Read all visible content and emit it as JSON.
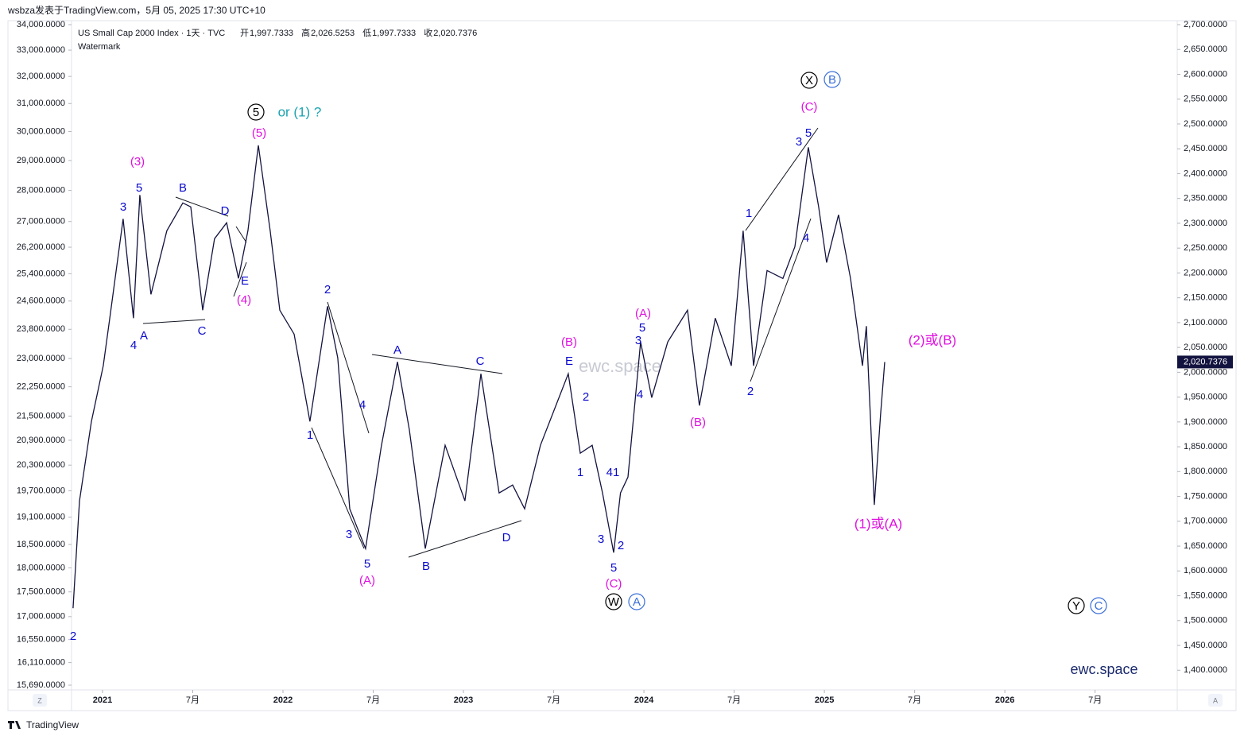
{
  "header": {
    "source": "wsbza发表于TradingView.com，5月 05, 2025 17:30 UTC+10",
    "symbol": "US Small Cap 2000 Index · 1天 · TVC",
    "ohlc": [
      {
        "label": "开",
        "value": "1,997.7333"
      },
      {
        "label": "高",
        "value": "2,026.5253"
      },
      {
        "label": "低",
        "value": "1,997.7333"
      },
      {
        "label": "收",
        "value": "2,020.7376"
      }
    ],
    "watermark": "Watermark"
  },
  "chart_data": {
    "type": "line",
    "series": [
      {
        "color": "#131340",
        "x": [
          -1.96,
          -1.53,
          -0.74,
          0.05,
          0.48,
          1.37,
          2.06,
          2.48,
          3.22,
          4.28,
          5.34,
          5.87,
          6.66,
          7.45,
          8.25,
          9.04,
          9.67,
          10.36,
          11.15,
          11.79,
          12.74,
          13.79,
          14.96,
          15.64,
          16.44,
          17.49,
          18.55,
          19.61,
          20.4,
          21.46,
          22.78,
          24.1,
          25.16,
          26.37,
          27.27,
          28.07,
          29.12,
          30.97,
          31.77,
          32.56,
          33.25,
          33.99,
          34.44,
          34.94,
          35.78,
          36.52,
          37.58,
          38.9,
          39.69,
          40.75,
          41.81,
          42.6,
          43.29,
          44.19,
          45.24,
          46.04,
          46.93,
          47.62,
          48.15,
          48.94,
          49.74,
          50.53,
          50.79,
          51.32,
          51.74,
          52.01
        ],
        "values": [
          1525,
          1741,
          1901,
          2013,
          2109,
          2309,
          2109,
          2357,
          2157,
          2285,
          2341,
          2333,
          2125,
          2269,
          2301,
          2189,
          2285,
          2457,
          2285,
          2125,
          2077,
          1901,
          2133,
          2029,
          1725,
          1645,
          1853,
          2021,
          1885,
          1645,
          1853,
          1741,
          1997,
          1757,
          1773,
          1725,
          1853,
          1997,
          1837,
          1853,
          1757,
          1637,
          1757,
          1789,
          2061,
          1949,
          2061,
          2125,
          1933,
          2109,
          2013,
          2285,
          2013,
          2205,
          2189,
          2253,
          2453,
          2333,
          2221,
          2317,
          2189,
          2013,
          2093,
          1733,
          1917,
          2020.7376
        ]
      }
    ],
    "last_value": {
      "value": 2020.7376,
      "label": "2,020.7376"
    },
    "xlim": [
      -2.06,
      71.41
    ],
    "xticks": [
      {
        "value": 0,
        "label": "2021"
      },
      {
        "value": 6,
        "label": "7月"
      },
      {
        "value": 12,
        "label": "2022"
      },
      {
        "value": 18,
        "label": "7月"
      },
      {
        "value": 24,
        "label": "2023"
      },
      {
        "value": 30,
        "label": "7月"
      },
      {
        "value": 36,
        "label": "2024"
      },
      {
        "value": 42,
        "label": "7月"
      },
      {
        "value": 48,
        "label": "2025"
      },
      {
        "value": 54,
        "label": "7月"
      },
      {
        "value": 60,
        "label": "2026"
      },
      {
        "value": 66,
        "label": "7月"
      }
    ],
    "ylim": [
      1370,
      2700
    ],
    "yticks": [
      {
        "value": 2700,
        "label": "2,700.0000"
      },
      {
        "value": 2650,
        "label": "2,650.0000"
      },
      {
        "value": 2600,
        "label": "2,600.0000"
      },
      {
        "value": 2550,
        "label": "2,550.0000"
      },
      {
        "value": 2500,
        "label": "2,500.0000"
      },
      {
        "value": 2450,
        "label": "2,450.0000"
      },
      {
        "value": 2400,
        "label": "2,400.0000"
      },
      {
        "value": 2350,
        "label": "2,350.0000"
      },
      {
        "value": 2300,
        "label": "2,300.0000"
      },
      {
        "value": 2250,
        "label": "2,250.0000"
      },
      {
        "value": 2200,
        "label": "2,200.0000"
      },
      {
        "value": 2150,
        "label": "2,150.0000"
      },
      {
        "value": 2100,
        "label": "2,100.0000"
      },
      {
        "value": 2050,
        "label": "2,050.0000"
      },
      {
        "value": 2000,
        "label": "2,000.0000"
      },
      {
        "value": 1950,
        "label": "1,950.0000"
      },
      {
        "value": 1900,
        "label": "1,900.0000"
      },
      {
        "value": 1850,
        "label": "1,850.0000"
      },
      {
        "value": 1800,
        "label": "1,800.0000"
      },
      {
        "value": 1750,
        "label": "1,750.0000"
      },
      {
        "value": 1700,
        "label": "1,700.0000"
      },
      {
        "value": 1650,
        "label": "1,650.0000"
      },
      {
        "value": 1600,
        "label": "1,600.0000"
      },
      {
        "value": 1550,
        "label": "1,550.0000"
      },
      {
        "value": 1500,
        "label": "1,500.0000"
      },
      {
        "value": 1450,
        "label": "1,450.0000"
      },
      {
        "value": 1400,
        "label": "1,400.0000"
      }
    ],
    "y2lim": [
      15690,
      34000
    ],
    "y2log": true,
    "y2ticks": [
      {
        "value": 34000,
        "label": "34,000.0000"
      },
      {
        "value": 33000,
        "label": "33,000.0000"
      },
      {
        "value": 32000,
        "label": "32,000.0000"
      },
      {
        "value": 31000,
        "label": "31,000.0000"
      },
      {
        "value": 30000,
        "label": "30,000.0000"
      },
      {
        "value": 29000,
        "label": "29,000.0000"
      },
      {
        "value": 28000,
        "label": "28,000.0000"
      },
      {
        "value": 27000,
        "label": "27,000.0000"
      },
      {
        "value": 26200,
        "label": "26,200.0000"
      },
      {
        "value": 25400,
        "label": "25,400.0000"
      },
      {
        "value": 24600,
        "label": "24,600.0000"
      },
      {
        "value": 23800,
        "label": "23,800.0000"
      },
      {
        "value": 23000,
        "label": "23,000.0000"
      },
      {
        "value": 22250,
        "label": "22,250.0000"
      },
      {
        "value": 21500,
        "label": "21,500.0000"
      },
      {
        "value": 20900,
        "label": "20,900.0000"
      },
      {
        "value": 20300,
        "label": "20,300.0000"
      },
      {
        "value": 19700,
        "label": "19,700.0000"
      },
      {
        "value": 19100,
        "label": "19,100.0000"
      },
      {
        "value": 18500,
        "label": "18,500.0000"
      },
      {
        "value": 18000,
        "label": "18,000.0000"
      },
      {
        "value": 17500,
        "label": "17,500.0000"
      },
      {
        "value": 17000,
        "label": "17,000.0000"
      },
      {
        "value": 16550,
        "label": "16,550.0000"
      },
      {
        "value": 16110,
        "label": "16,110.0000"
      },
      {
        "value": 15690,
        "label": "15,690.0000"
      }
    ],
    "annotations": [
      {
        "text": "2",
        "color": "#0a0acc"
      },
      {
        "text": "3",
        "color": "#0a0acc"
      },
      {
        "text": "5",
        "color": "#0a0acc"
      },
      {
        "text": "4",
        "color": "#0a0acc"
      },
      {
        "text": "A",
        "color": "#0a0acc"
      },
      {
        "text": "B",
        "color": "#0a0acc"
      },
      {
        "text": "C",
        "color": "#0a0acc"
      },
      {
        "text": "D",
        "color": "#0a0acc"
      },
      {
        "text": "E",
        "color": "#0a0acc"
      },
      {
        "text": "2",
        "color": "#0a0acc"
      },
      {
        "text": "1",
        "color": "#0a0acc"
      },
      {
        "text": "4",
        "color": "#0a0acc"
      },
      {
        "text": "3",
        "color": "#0a0acc"
      },
      {
        "text": "5",
        "color": "#0a0acc"
      },
      {
        "text": "A",
        "color": "#0a0acc"
      },
      {
        "text": "B",
        "color": "#0a0acc"
      },
      {
        "text": "C",
        "color": "#0a0acc"
      },
      {
        "text": "D",
        "color": "#0a0acc"
      },
      {
        "text": "E",
        "color": "#0a0acc"
      },
      {
        "text": "2",
        "color": "#0a0acc"
      },
      {
        "text": "1",
        "color": "#0a0acc"
      },
      {
        "text": "41",
        "color": "#0a0acc"
      },
      {
        "text": "3",
        "color": "#0a0acc"
      },
      {
        "text": "2",
        "color": "#0a0acc"
      },
      {
        "text": "5",
        "color": "#0a0acc"
      },
      {
        "text": "5",
        "color": "#0a0acc"
      },
      {
        "text": "3",
        "color": "#0a0acc"
      },
      {
        "text": "4",
        "color": "#0a0acc"
      },
      {
        "text": "1",
        "color": "#0a0acc"
      },
      {
        "text": "2",
        "color": "#0a0acc"
      },
      {
        "text": "3",
        "color": "#0a0acc"
      },
      {
        "text": "5",
        "color": "#0a0acc"
      },
      {
        "text": "4",
        "color": "#0a0acc"
      },
      {
        "text": "(3)",
        "color": "#e010e0"
      },
      {
        "text": "(5)",
        "color": "#e010e0"
      },
      {
        "text": "(4)",
        "color": "#e010e0"
      },
      {
        "text": "(A)",
        "color": "#e010e0"
      },
      {
        "text": "(B)",
        "color": "#e010e0"
      },
      {
        "text": "(C)",
        "color": "#e010e0"
      },
      {
        "text": "(A)",
        "color": "#e010e0"
      },
      {
        "text": "(B)",
        "color": "#e010e0"
      },
      {
        "text": "(C)",
        "color": "#e010e0"
      },
      {
        "text": "(2)或(B)",
        "color": "#e010e0"
      },
      {
        "text": "(1)或(A)",
        "color": "#e010e0"
      },
      {
        "text": "or (1) ?",
        "color": "#1aa3b0"
      },
      {
        "text": "5",
        "color": "#000000",
        "circled": true
      },
      {
        "text": "X",
        "color": "#000000",
        "circled": true
      },
      {
        "text": "W",
        "color": "#000000",
        "circled": true
      },
      {
        "text": "Y",
        "color": "#000000",
        "circled": true
      },
      {
        "text": "B",
        "color": "#3a6fd8",
        "circled": true
      },
      {
        "text": "A",
        "color": "#3a6fd8",
        "circled": true
      },
      {
        "text": "C",
        "color": "#3a6fd8",
        "circled": true
      }
    ],
    "watermark_text": "ewc.space"
  },
  "footer": {
    "logo": "TradingView",
    "left_button": "Z",
    "right_button": "A"
  }
}
